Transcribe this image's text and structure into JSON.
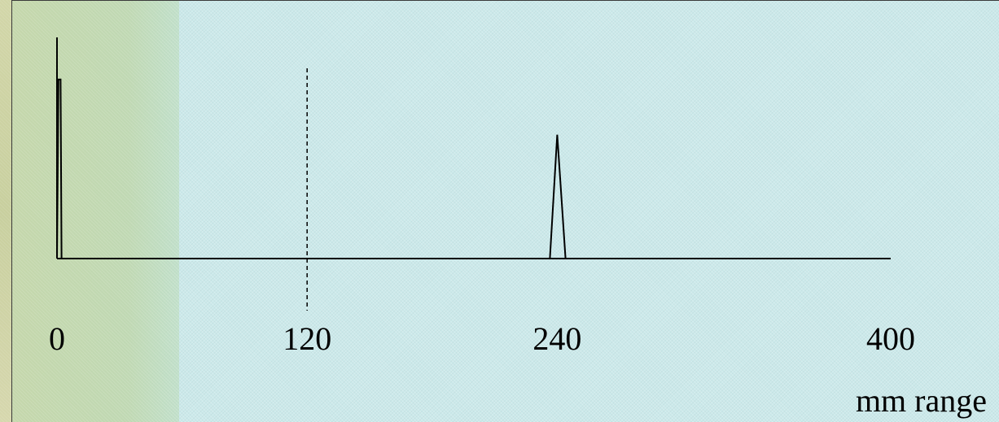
{
  "chart_data": {
    "type": "line",
    "title": "",
    "xlabel": "mm range",
    "ylabel": "",
    "xlim": [
      0,
      400
    ],
    "ylim": [
      0,
      1
    ],
    "grid": false,
    "ticks": [
      0,
      120,
      240,
      400
    ],
    "tick_labels": [
      "0",
      "120",
      "240",
      "400"
    ],
    "series": [
      {
        "x": [
          0,
          0,
          0,
          0.7,
          1.7,
          2.2,
          3.7
        ],
        "y": [
          0,
          1,
          0,
          0.81,
          0.81,
          0,
          0
        ]
      },
      {
        "x": [
          236.5,
          240,
          244
        ],
        "y": [
          0,
          0.56,
          0
        ]
      }
    ],
    "reference_line": {
      "x": 120,
      "style": "dashed"
    },
    "colors": {
      "line": "#000000",
      "panel": "#cbe9ea",
      "band": "#c4d6a8"
    }
  }
}
